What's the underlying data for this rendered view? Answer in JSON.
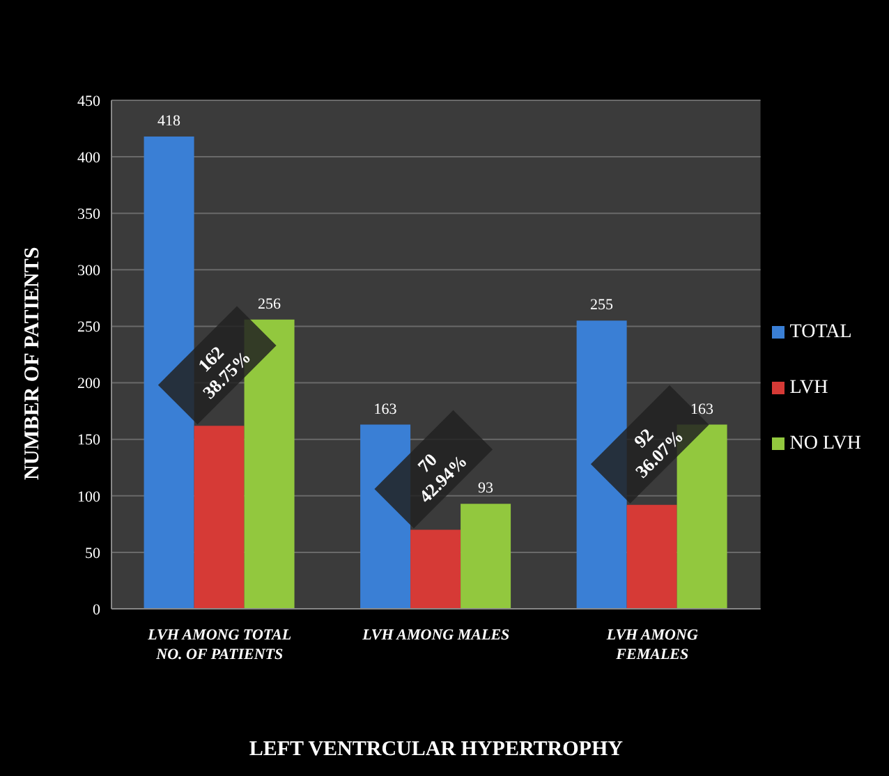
{
  "chart_data": {
    "type": "bar",
    "categories": [
      "LVH AMONG TOTAL NO. OF PATIENTS",
      "LVH AMONG MALES",
      "LVH AMONG FEMALES"
    ],
    "series": [
      {
        "name": "TOTAL",
        "color": "#3a7fd5",
        "values": [
          418,
          163,
          255
        ],
        "value_labels": [
          "418",
          "163",
          "255"
        ]
      },
      {
        "name": "LVH",
        "color": "#d63a36",
        "values": [
          162,
          70,
          92
        ],
        "value_labels": [
          "162\n38.75%",
          "70\n42.94%",
          "92\n36.07%"
        ]
      },
      {
        "name": "NO LVH",
        "color": "#92c83e",
        "values": [
          256,
          93,
          163
        ],
        "value_labels": [
          "256",
          "93",
          "163"
        ]
      }
    ],
    "xlabel": "LEFT VENTRCULAR HYPERTROPHY",
    "ylabel": "NUMBER OF PATIENTS",
    "ylim": [
      0,
      450
    ],
    "yticks": [
      0,
      50,
      100,
      150,
      200,
      250,
      300,
      350,
      400,
      450
    ],
    "grid": "y",
    "legend": "right"
  }
}
